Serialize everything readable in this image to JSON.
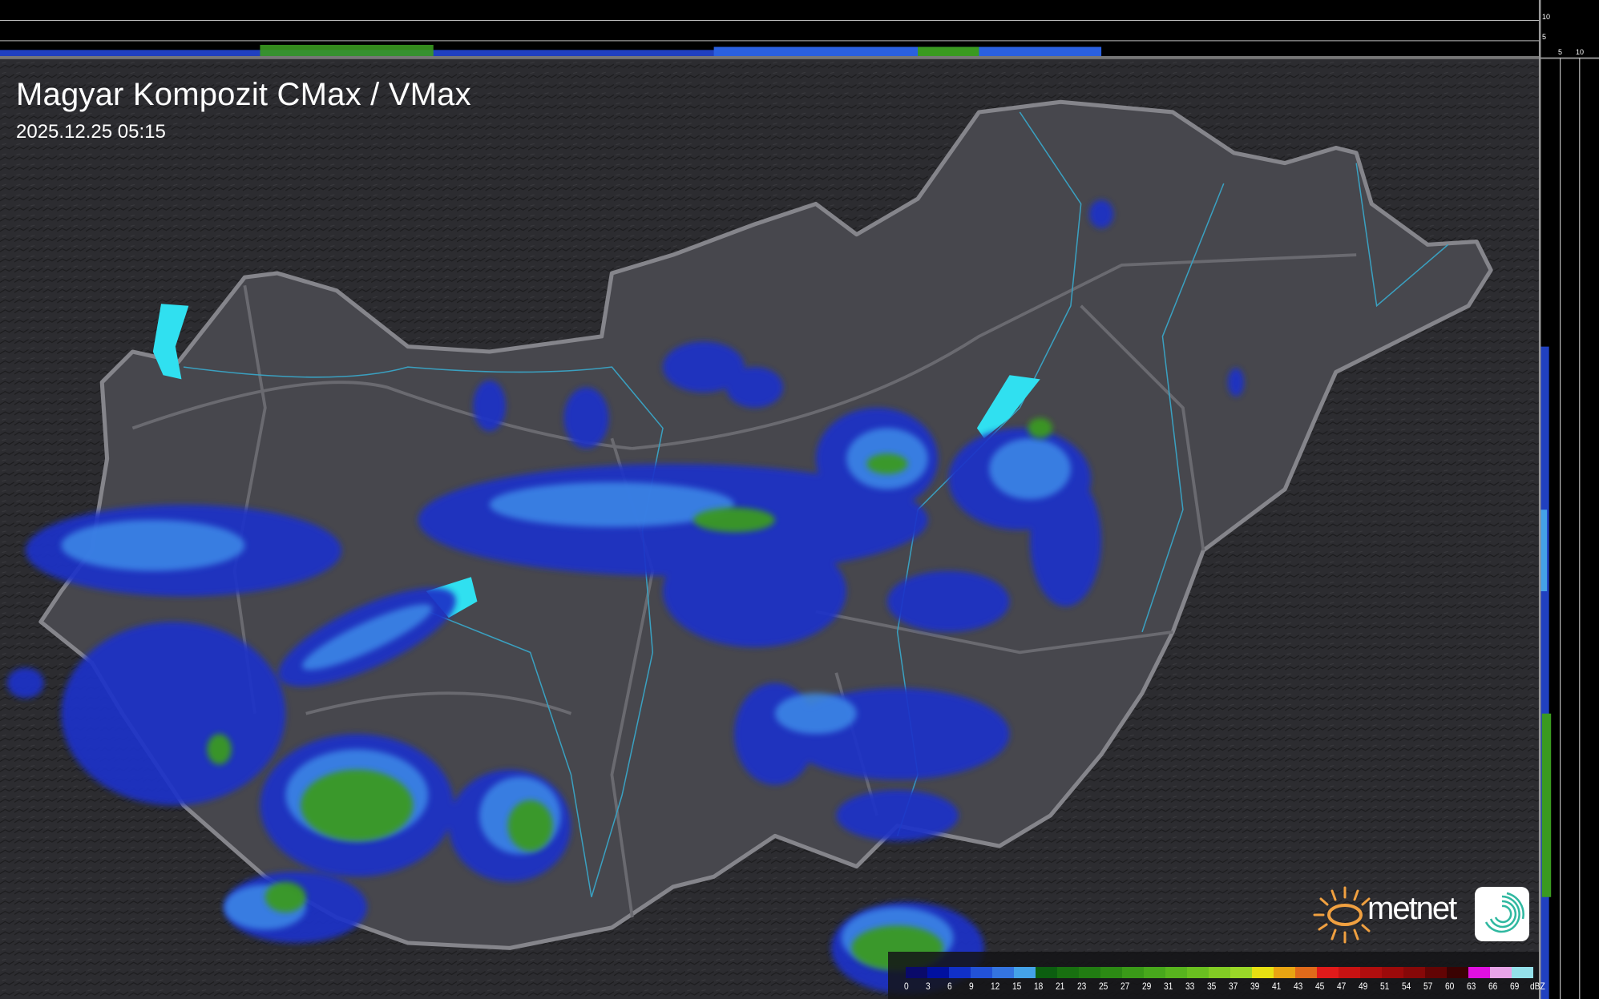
{
  "header": {
    "title": "Magyar Kompozit CMax / VMax",
    "timestamp": "2025.12.25 05:15"
  },
  "profile_axes": {
    "top_strip_ticks": [
      "10",
      "5"
    ],
    "right_strip_ticks": [
      "5",
      "10"
    ]
  },
  "legend": {
    "unit": "dBZ",
    "labels": [
      "0",
      "3",
      "6",
      "9",
      "12",
      "15",
      "18",
      "21",
      "23",
      "25",
      "27",
      "29",
      "31",
      "33",
      "35",
      "37",
      "39",
      "41",
      "43",
      "45",
      "47",
      "49",
      "51",
      "54",
      "57",
      "60",
      "63",
      "66",
      "69"
    ],
    "colors": [
      "#0a0a6a",
      "#0010a0",
      "#1030c8",
      "#2252d8",
      "#3474e0",
      "#44a2e8",
      "#0c5e10",
      "#187010",
      "#217c12",
      "#2c8a14",
      "#3a9a18",
      "#48a81c",
      "#58b41e",
      "#6ac020",
      "#82cc24",
      "#9ad828",
      "#e6e012",
      "#e8a412",
      "#e06a1a",
      "#e01a1a",
      "#c81212",
      "#b00e0e",
      "#9c0a0a",
      "#860808",
      "#620404",
      "#3a0202",
      "#e010e0",
      "#e8a4e8",
      "#94e0ea"
    ]
  },
  "branding": {
    "logo_text": "metnet",
    "colors": {
      "sun": "#f0a040",
      "swirl": "#2fb8a0"
    }
  },
  "map": {
    "colors": {
      "background": "#2a2a2e",
      "country": "#4a4a50",
      "border": "#8a8a90",
      "rivers": "#3aa0c0",
      "lakes": "#30e0f0",
      "light_precip": "#2a5ae0",
      "medium_precip": "#3c8ae8",
      "strong_precip": "#3a9a20"
    }
  }
}
